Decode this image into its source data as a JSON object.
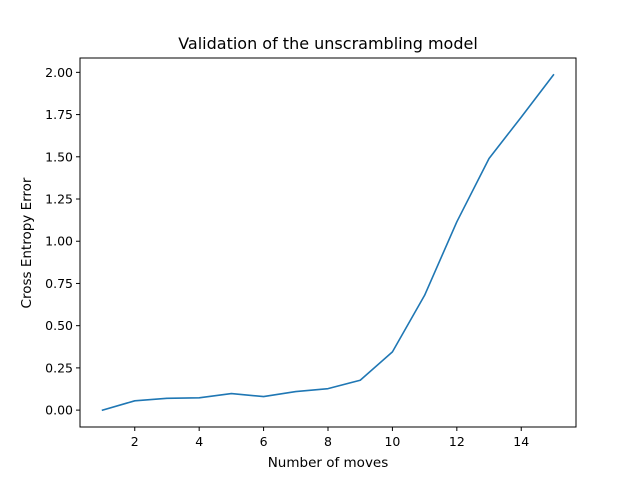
{
  "chart_data": {
    "type": "line",
    "title": "Validation of the unscrambling model",
    "xlabel": "Number of moves",
    "ylabel": "Cross Entropy Error",
    "x": [
      1,
      2,
      3,
      4,
      5,
      6,
      7,
      8,
      9,
      10,
      11,
      12,
      13,
      14,
      15
    ],
    "series": [
      {
        "name": "",
        "color": "#1f77b4",
        "values": [
          0.0,
          0.055,
          0.07,
          0.073,
          0.098,
          0.08,
          0.11,
          0.127,
          0.177,
          0.345,
          0.68,
          1.115,
          1.49,
          1.735,
          1.985
        ]
      }
    ],
    "xlim": [
      0.3,
      15.7
    ],
    "ylim": [
      -0.1,
      2.085
    ],
    "xticks": [
      2,
      4,
      6,
      8,
      10,
      12,
      14
    ],
    "xtick_labels": [
      "2",
      "4",
      "6",
      "8",
      "10",
      "12",
      "14"
    ],
    "yticks": [
      0.0,
      0.25,
      0.5,
      0.75,
      1.0,
      1.25,
      1.5,
      1.75,
      2.0
    ],
    "ytick_labels": [
      "0.00",
      "0.25",
      "0.50",
      "0.75",
      "1.00",
      "1.25",
      "1.50",
      "1.75",
      "2.00"
    ],
    "grid": false,
    "legend": "none"
  }
}
